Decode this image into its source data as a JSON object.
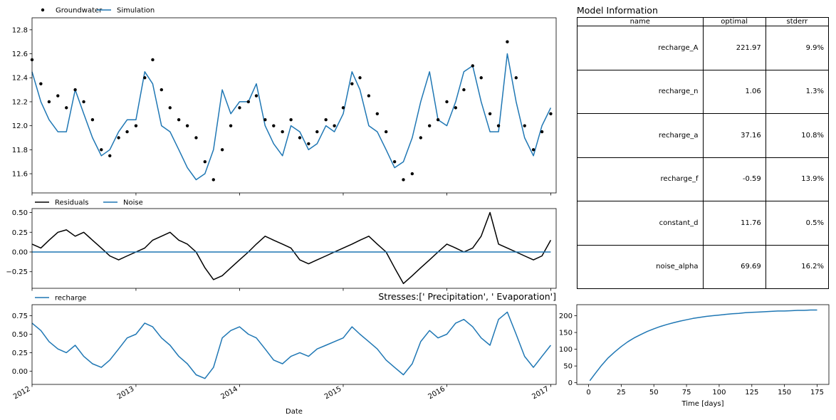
{
  "colors": {
    "observed": "#000000",
    "simulated": "#1f77b4",
    "residuals": "#000000",
    "noise": "#1f77b4",
    "recharge": "#1f77b4",
    "response": "#1f77b4"
  },
  "date_axis": {
    "tick_labels": [
      "2012",
      "2013",
      "2014",
      "2015",
      "2016",
      "2017"
    ]
  },
  "table": {
    "title": "Model Information",
    "columns": [
      "name",
      "optimal",
      "stderr"
    ],
    "rows": [
      [
        "recharge_A",
        "221.97",
        "9.9%"
      ],
      [
        "recharge_n",
        "1.06",
        "1.3%"
      ],
      [
        "recharge_a",
        "37.16",
        "10.8%"
      ],
      [
        "recharge_f",
        "-0.59",
        "13.9%"
      ],
      [
        "constant_d",
        "11.76",
        "0.5%"
      ],
      [
        "noise_alpha",
        "69.69",
        "16.2%"
      ]
    ]
  },
  "chart_data": [
    {
      "type": "scatter",
      "title": "",
      "xlabel": "",
      "ylabel": "",
      "ylim": [
        11.44,
        12.9
      ],
      "yticks": [
        11.6,
        11.8,
        12.0,
        12.2,
        12.4,
        12.6,
        12.8
      ],
      "legend": "top-left",
      "series": [
        {
          "name": "Groundwater",
          "style": "points",
          "x": [
            "2012-01-01",
            "2012-02-01",
            "2012-03-01",
            "2012-04-01",
            "2012-05-01",
            "2012-06-01",
            "2012-07-01",
            "2012-08-01",
            "2012-09-01",
            "2012-10-01",
            "2012-11-01",
            "2012-12-01",
            "2013-01-01",
            "2013-02-01",
            "2013-03-01",
            "2013-04-01",
            "2013-05-01",
            "2013-06-01",
            "2013-07-01",
            "2013-08-01",
            "2013-09-01",
            "2013-10-01",
            "2013-11-01",
            "2013-12-01",
            "2014-01-01",
            "2014-02-01",
            "2014-03-01",
            "2014-04-01",
            "2014-05-01",
            "2014-06-01",
            "2014-07-01",
            "2014-08-01",
            "2014-09-01",
            "2014-10-01",
            "2014-11-01",
            "2014-12-01",
            "2015-01-01",
            "2015-02-01",
            "2015-03-01",
            "2015-04-01",
            "2015-05-01",
            "2015-06-01",
            "2015-07-01",
            "2015-08-01",
            "2015-09-01",
            "2015-10-01",
            "2015-11-01",
            "2015-12-01",
            "2016-01-01",
            "2016-02-01",
            "2016-03-01",
            "2016-04-01",
            "2016-05-01",
            "2016-06-01",
            "2016-07-01",
            "2016-08-01",
            "2016-09-01",
            "2016-10-01",
            "2016-11-01",
            "2016-12-01",
            "2017-01-01"
          ],
          "y": [
            12.55,
            12.35,
            12.2,
            12.25,
            12.15,
            12.3,
            12.2,
            12.05,
            11.8,
            11.75,
            11.9,
            11.95,
            12.0,
            12.4,
            12.55,
            12.3,
            12.15,
            12.05,
            12.0,
            11.9,
            11.7,
            11.55,
            11.8,
            12.0,
            12.15,
            12.2,
            12.25,
            12.05,
            12.0,
            11.95,
            12.05,
            11.9,
            11.85,
            11.95,
            12.05,
            12.0,
            12.15,
            12.35,
            12.4,
            12.25,
            12.1,
            11.95,
            11.7,
            11.55,
            11.6,
            11.9,
            12.0,
            12.05,
            12.2,
            12.15,
            12.3,
            12.5,
            12.4,
            12.1,
            12.0,
            12.7,
            12.4,
            12.0,
            11.8,
            11.95,
            12.1
          ]
        },
        {
          "name": "Simulation",
          "style": "line",
          "x": [
            "2012-01-01",
            "2012-02-01",
            "2012-03-01",
            "2012-04-01",
            "2012-05-01",
            "2012-06-01",
            "2012-07-01",
            "2012-08-01",
            "2012-09-01",
            "2012-10-01",
            "2012-11-01",
            "2012-12-01",
            "2013-01-01",
            "2013-02-01",
            "2013-03-01",
            "2013-04-01",
            "2013-05-01",
            "2013-06-01",
            "2013-07-01",
            "2013-08-01",
            "2013-09-01",
            "2013-10-01",
            "2013-11-01",
            "2013-12-01",
            "2014-01-01",
            "2014-02-01",
            "2014-03-01",
            "2014-04-01",
            "2014-05-01",
            "2014-06-01",
            "2014-07-01",
            "2014-08-01",
            "2014-09-01",
            "2014-10-01",
            "2014-11-01",
            "2014-12-01",
            "2015-01-01",
            "2015-02-01",
            "2015-03-01",
            "2015-04-01",
            "2015-05-01",
            "2015-06-01",
            "2015-07-01",
            "2015-08-01",
            "2015-09-01",
            "2015-10-01",
            "2015-11-01",
            "2015-12-01",
            "2016-01-01",
            "2016-02-01",
            "2016-03-01",
            "2016-04-01",
            "2016-05-01",
            "2016-06-01",
            "2016-07-01",
            "2016-08-01",
            "2016-09-01",
            "2016-10-01",
            "2016-11-01",
            "2016-12-01",
            "2017-01-01"
          ],
          "y": [
            12.45,
            12.2,
            12.05,
            11.95,
            11.95,
            12.3,
            12.1,
            11.9,
            11.75,
            11.8,
            11.95,
            12.05,
            12.05,
            12.45,
            12.35,
            12.0,
            11.95,
            11.8,
            11.65,
            11.55,
            11.6,
            11.8,
            12.3,
            12.1,
            12.2,
            12.2,
            12.35,
            12.0,
            11.85,
            11.75,
            12.0,
            11.95,
            11.8,
            11.85,
            12.0,
            11.95,
            12.1,
            12.45,
            12.3,
            12.0,
            11.95,
            11.8,
            11.65,
            11.7,
            11.9,
            12.2,
            12.45,
            12.05,
            12.0,
            12.2,
            12.45,
            12.5,
            12.2,
            11.95,
            11.95,
            12.6,
            12.2,
            11.9,
            11.75,
            12.0,
            12.15
          ]
        }
      ]
    },
    {
      "type": "line",
      "title": "",
      "xlabel": "",
      "ylabel": "",
      "ylim": [
        -0.46,
        0.55
      ],
      "yticks": [
        -0.25,
        0.0,
        0.25,
        0.5
      ],
      "ytick_labels": [
        "−0.25",
        "0.00",
        "0.25",
        "0.50"
      ],
      "legend": "top-left",
      "series": [
        {
          "name": "Residuals",
          "x": [
            "2012-01-01",
            "2012-02-01",
            "2012-03-01",
            "2012-04-01",
            "2012-05-01",
            "2012-06-01",
            "2012-07-01",
            "2012-08-01",
            "2012-09-01",
            "2012-10-01",
            "2012-11-01",
            "2012-12-01",
            "2013-01-01",
            "2013-02-01",
            "2013-03-01",
            "2013-04-01",
            "2013-05-01",
            "2013-06-01",
            "2013-07-01",
            "2013-08-01",
            "2013-09-01",
            "2013-10-01",
            "2013-11-01",
            "2013-12-01",
            "2014-01-01",
            "2014-02-01",
            "2014-03-01",
            "2014-04-01",
            "2014-05-01",
            "2014-06-01",
            "2014-07-01",
            "2014-08-01",
            "2014-09-01",
            "2014-10-01",
            "2014-11-01",
            "2014-12-01",
            "2015-01-01",
            "2015-02-01",
            "2015-03-01",
            "2015-04-01",
            "2015-05-01",
            "2015-06-01",
            "2015-07-01",
            "2015-08-01",
            "2015-09-01",
            "2015-10-01",
            "2015-11-01",
            "2015-12-01",
            "2016-01-01",
            "2016-02-01",
            "2016-03-01",
            "2016-04-01",
            "2016-05-01",
            "2016-06-01",
            "2016-07-01",
            "2016-08-01",
            "2016-09-01",
            "2016-10-01",
            "2016-11-01",
            "2016-12-01",
            "2017-01-01"
          ],
          "y": [
            0.1,
            0.05,
            0.15,
            0.25,
            0.28,
            0.2,
            0.25,
            0.15,
            0.05,
            -0.05,
            -0.1,
            -0.05,
            0.0,
            0.05,
            0.15,
            0.2,
            0.25,
            0.15,
            0.1,
            0.0,
            -0.2,
            -0.35,
            -0.3,
            -0.2,
            -0.1,
            0.0,
            0.1,
            0.2,
            0.15,
            0.1,
            0.05,
            -0.1,
            -0.15,
            -0.1,
            -0.05,
            0.0,
            0.05,
            0.1,
            0.15,
            0.2,
            0.1,
            0.0,
            -0.2,
            -0.4,
            -0.3,
            -0.2,
            -0.1,
            0.0,
            0.1,
            0.05,
            0.0,
            0.05,
            0.2,
            0.5,
            0.1,
            0.05,
            0.0,
            -0.05,
            -0.1,
            -0.05,
            0.15
          ]
        },
        {
          "name": "Noise",
          "x": [
            "2012-01-01",
            "2012-07-01",
            "2013-01-01",
            "2013-07-01",
            "2014-01-01",
            "2014-07-01",
            "2015-01-01",
            "2015-07-01",
            "2016-01-01",
            "2016-07-01",
            "2017-01-01"
          ],
          "y": [
            0.0,
            0.0,
            0.0,
            0.0,
            0.0,
            0.0,
            0.0,
            0.0,
            0.0,
            0.0,
            0.0
          ]
        }
      ]
    },
    {
      "type": "line",
      "title": "Stresses:[' Precipitation', ' Evaporation']",
      "xlabel": "Date",
      "ylabel": "",
      "ylim": [
        -0.18,
        0.9
      ],
      "yticks": [
        0.0,
        0.25,
        0.5,
        0.75
      ],
      "ytick_labels": [
        "0.00",
        "0.25",
        "0.50",
        "0.75"
      ],
      "legend": "top-left",
      "series": [
        {
          "name": "recharge",
          "x": [
            "2012-01-01",
            "2012-02-01",
            "2012-03-01",
            "2012-04-01",
            "2012-05-01",
            "2012-06-01",
            "2012-07-01",
            "2012-08-01",
            "2012-09-01",
            "2012-10-01",
            "2012-11-01",
            "2012-12-01",
            "2013-01-01",
            "2013-02-01",
            "2013-03-01",
            "2013-04-01",
            "2013-05-01",
            "2013-06-01",
            "2013-07-01",
            "2013-08-01",
            "2013-09-01",
            "2013-10-01",
            "2013-11-01",
            "2013-12-01",
            "2014-01-01",
            "2014-02-01",
            "2014-03-01",
            "2014-04-01",
            "2014-05-01",
            "2014-06-01",
            "2014-07-01",
            "2014-08-01",
            "2014-09-01",
            "2014-10-01",
            "2014-11-01",
            "2014-12-01",
            "2015-01-01",
            "2015-02-01",
            "2015-03-01",
            "2015-04-01",
            "2015-05-01",
            "2015-06-01",
            "2015-07-01",
            "2015-08-01",
            "2015-09-01",
            "2015-10-01",
            "2015-11-01",
            "2015-12-01",
            "2016-01-01",
            "2016-02-01",
            "2016-03-01",
            "2016-04-01",
            "2016-05-01",
            "2016-06-01",
            "2016-07-01",
            "2016-08-01",
            "2016-09-01",
            "2016-10-01",
            "2016-11-01",
            "2016-12-01",
            "2017-01-01"
          ],
          "y": [
            0.65,
            0.55,
            0.4,
            0.3,
            0.25,
            0.35,
            0.2,
            0.1,
            0.05,
            0.15,
            0.3,
            0.45,
            0.5,
            0.65,
            0.6,
            0.45,
            0.35,
            0.2,
            0.1,
            -0.05,
            -0.1,
            0.05,
            0.45,
            0.55,
            0.6,
            0.5,
            0.45,
            0.3,
            0.15,
            0.1,
            0.2,
            0.25,
            0.2,
            0.3,
            0.35,
            0.4,
            0.45,
            0.6,
            0.5,
            0.4,
            0.3,
            0.15,
            0.05,
            -0.05,
            0.1,
            0.4,
            0.55,
            0.45,
            0.5,
            0.65,
            0.7,
            0.6,
            0.45,
            0.35,
            0.7,
            0.8,
            0.5,
            0.2,
            0.05,
            0.2,
            0.35
          ]
        }
      ]
    },
    {
      "type": "line",
      "title": "",
      "xlabel": "Time [days]",
      "ylabel": "",
      "xlim": [
        -9,
        184
      ],
      "ylim": [
        -5,
        233
      ],
      "xticks": [
        0,
        25,
        50,
        75,
        100,
        125,
        150,
        175
      ],
      "yticks": [
        0,
        50,
        100,
        150,
        200
      ],
      "legend": "none",
      "series": [
        {
          "name": "",
          "x": [
            1,
            5,
            10,
            15,
            20,
            25,
            30,
            35,
            40,
            45,
            50,
            55,
            60,
            65,
            70,
            75,
            80,
            85,
            90,
            95,
            100,
            105,
            110,
            115,
            120,
            125,
            130,
            135,
            140,
            145,
            150,
            155,
            160,
            165,
            170,
            175
          ],
          "y": [
            6,
            27,
            52,
            74,
            92,
            108,
            122,
            134,
            144,
            153,
            161,
            168,
            174,
            179,
            184,
            188,
            192,
            195,
            198,
            200,
            202,
            204,
            206,
            207,
            209,
            210,
            211,
            212,
            213,
            214,
            214,
            215,
            216,
            216,
            217,
            217
          ]
        }
      ]
    }
  ]
}
